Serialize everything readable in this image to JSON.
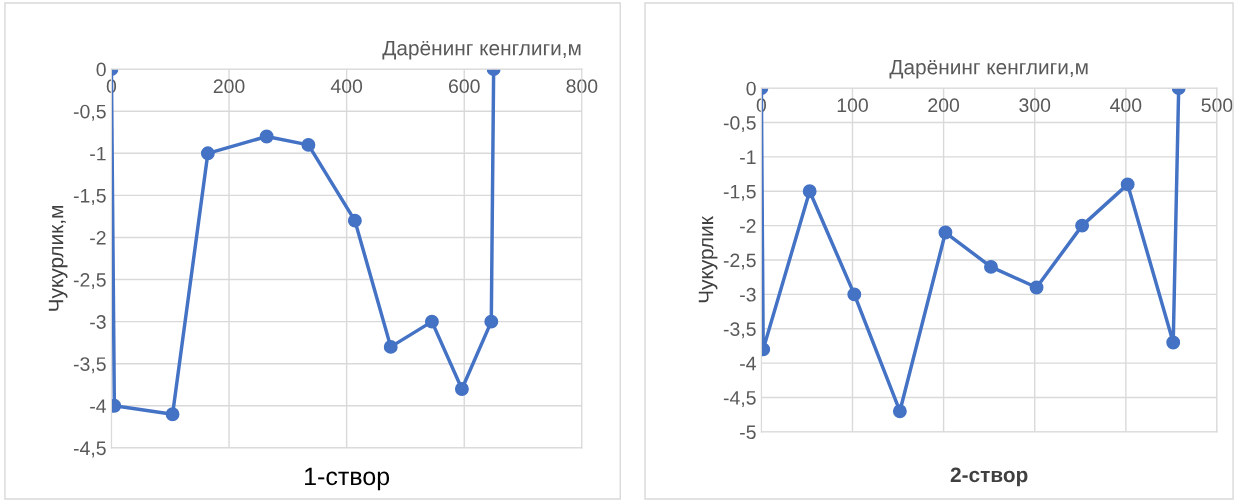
{
  "chart_data": [
    {
      "type": "line",
      "title": "1-створ",
      "xlabel": "Дарёнинг кенглиги,м",
      "ylabel": "Чукурлик,м",
      "xlim": [
        0,
        800
      ],
      "xticks": [
        0,
        200,
        400,
        600,
        800
      ],
      "ylim": [
        -4.5,
        0
      ],
      "yticks": [
        {
          "value": 0,
          "label": "0"
        },
        {
          "value": -0.5,
          "label": "-0,5"
        },
        {
          "value": -1,
          "label": "-1"
        },
        {
          "value": -1.5,
          "label": "-1,5"
        },
        {
          "value": -2,
          "label": "-2"
        },
        {
          "value": -2.5,
          "label": "-2,5"
        },
        {
          "value": -3,
          "label": "-3"
        },
        {
          "value": -3.5,
          "label": "-3,5"
        },
        {
          "value": -4,
          "label": "-4"
        },
        {
          "value": -4.5,
          "label": "-4,5"
        }
      ],
      "grid": true,
      "marker": "circle",
      "line_style": "solid",
      "series": [
        {
          "color": "#4472c4",
          "x": [
            0,
            5,
            104,
            164,
            264,
            335,
            414,
            475,
            545,
            596,
            646,
            650
          ],
          "values": [
            0,
            -4,
            -4.1,
            -1,
            -0.8,
            -0.9,
            -1.8,
            -3.3,
            -3,
            -3.8,
            -3,
            0
          ]
        }
      ]
    },
    {
      "type": "line",
      "title": "2-створ",
      "xlabel": "Дарёнинг кенглиги,м",
      "ylabel": "Чукурлик",
      "xlim": [
        0,
        500
      ],
      "xticks": [
        0,
        100,
        200,
        300,
        400,
        500
      ],
      "ylim": [
        -5,
        0
      ],
      "yticks": [
        {
          "value": 0,
          "label": "0"
        },
        {
          "value": -0.5,
          "label": "-0,5"
        },
        {
          "value": -1,
          "label": "-1"
        },
        {
          "value": -1.5,
          "label": "-1,5"
        },
        {
          "value": -2,
          "label": "-2"
        },
        {
          "value": -2.5,
          "label": "-2,5"
        },
        {
          "value": -3,
          "label": "-3"
        },
        {
          "value": -3.5,
          "label": "-3,5"
        },
        {
          "value": -4,
          "label": "-4"
        },
        {
          "value": -4.5,
          "label": "-4,5"
        },
        {
          "value": -5,
          "label": "-5"
        }
      ],
      "grid": true,
      "marker": "circle",
      "line_style": "solid",
      "series": [
        {
          "color": "#4472c4",
          "x": [
            0,
            2,
            53,
            102,
            152,
            202,
            252,
            302,
            352,
            402,
            452,
            458
          ],
          "values": [
            0,
            -3.8,
            -1.5,
            -3,
            -4.7,
            -2.1,
            -2.6,
            -2.9,
            -2,
            -1.4,
            -3.7,
            0
          ]
        }
      ]
    }
  ]
}
